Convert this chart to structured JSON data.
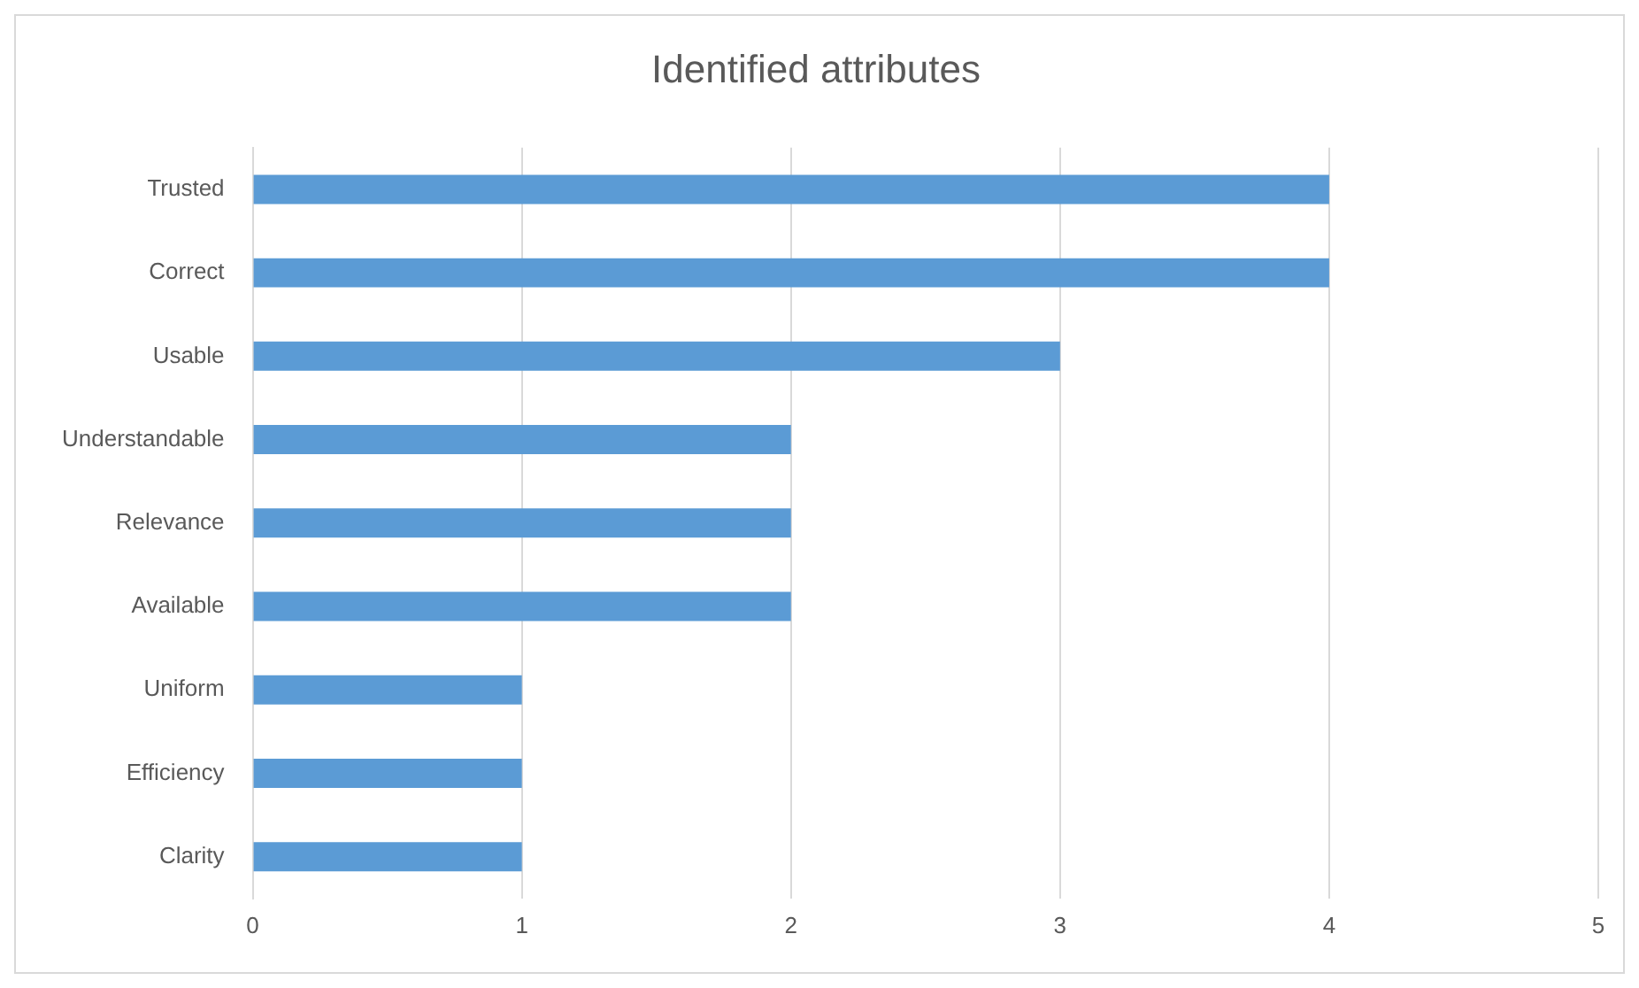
{
  "chart_data": {
    "type": "bar",
    "title": "Identified attributes",
    "orientation": "horizontal",
    "categories": [
      "Trusted",
      "Correct",
      "Usable",
      "Understandable",
      "Relevance",
      "Available",
      "Uniform",
      "Efficiency",
      "Clarity"
    ],
    "values": [
      4,
      4,
      3,
      2,
      2,
      2,
      1,
      1,
      1
    ],
    "color": "#5b9bd5",
    "xlim": [
      0,
      5
    ],
    "xticks": [
      0,
      1,
      2,
      3,
      4,
      5
    ],
    "grid": "x",
    "legend": false
  }
}
